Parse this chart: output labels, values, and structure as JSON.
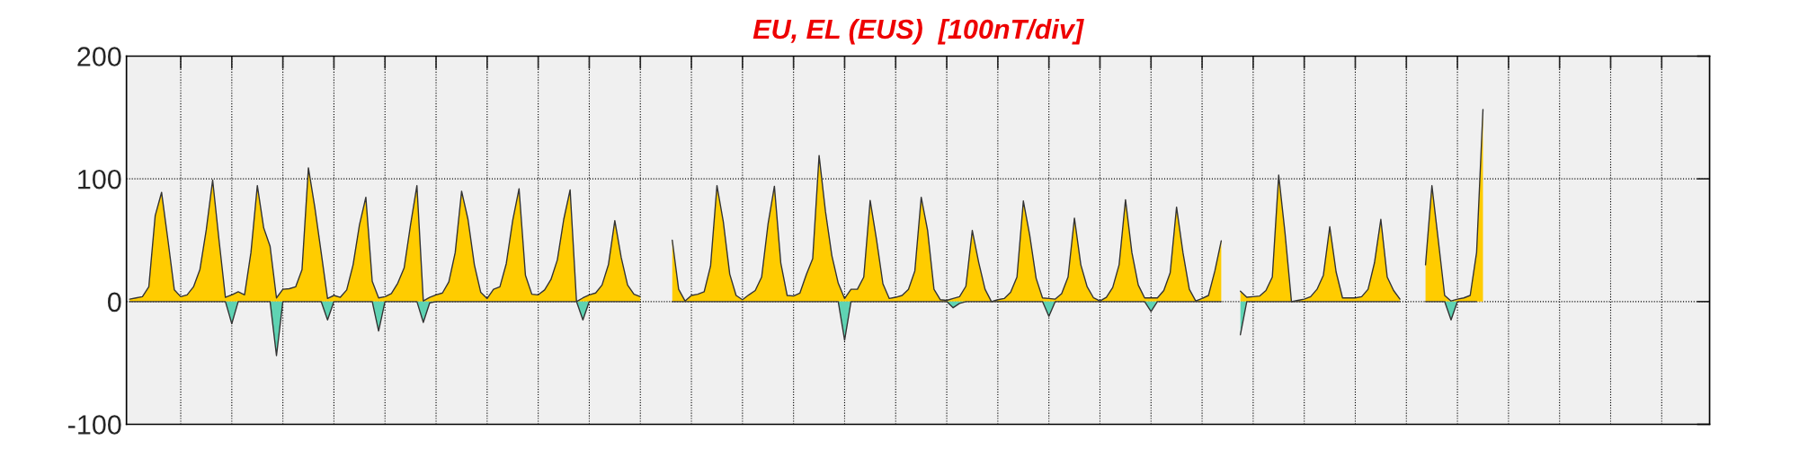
{
  "chart_data": {
    "type": "area",
    "title": "EU, EL (EUS)  [100nT/div]",
    "categories": [
      null,
      null,
      null,
      null,
      null,
      null,
      null,
      null,
      null,
      null,
      null,
      null,
      null,
      null,
      null,
      null,
      null,
      null,
      null,
      null,
      null,
      null,
      null,
      null,
      null,
      null,
      null,
      null,
      null,
      null,
      null,
      null,
      null,
      null,
      null,
      null,
      null,
      null,
      null,
      null,
      null,
      null,
      null,
      null,
      null,
      null,
      null,
      null,
      null,
      null,
      null,
      null,
      null,
      null,
      null,
      null,
      null,
      null,
      null,
      null,
      null,
      null,
      null,
      null,
      null,
      null,
      null,
      null,
      null,
      null,
      null,
      null,
      null,
      null,
      null,
      null,
      null,
      null,
      null,
      null,
      null,
      null,
      null,
      null,
      null,
      null,
      null,
      null,
      null,
      null,
      null,
      null,
      null,
      null,
      null,
      null,
      null,
      null,
      null,
      null,
      null,
      null,
      null,
      null,
      null,
      null,
      null,
      null,
      null,
      null,
      null,
      null,
      null,
      null,
      null,
      null,
      null,
      null,
      null,
      null,
      null,
      null,
      null,
      null,
      null,
      null,
      null,
      null,
      null,
      null,
      null,
      null,
      null,
      null,
      null,
      null,
      null,
      null,
      null,
      null,
      null,
      null,
      null,
      null,
      null,
      null,
      null,
      null,
      null,
      null,
      null,
      null,
      null,
      null,
      null,
      null,
      null,
      null,
      null,
      null,
      null,
      null,
      null,
      null,
      null,
      null,
      null,
      null,
      null,
      null,
      null,
      null,
      null,
      null,
      null,
      null,
      null,
      null,
      null,
      null,
      null,
      null,
      null,
      null,
      null,
      null,
      null,
      null,
      null,
      null,
      null,
      null,
      null,
      null,
      null,
      null,
      null,
      null,
      null,
      null,
      null,
      null,
      null,
      null,
      null,
      null,
      null,
      null,
      null,
      null,
      null,
      null,
      null,
      null,
      null,
      null,
      null,
      null,
      null,
      null,
      null,
      null,
      null,
      null,
      null,
      null,
      null,
      null,
      null,
      null,
      null,
      null,
      null,
      null,
      null,
      null,
      null,
      null,
      null,
      null,
      null,
      null,
      null,
      null,
      null,
      null,
      null,
      null
    ],
    "ylim": [
      -100,
      200
    ],
    "yticks": [
      -100,
      0,
      100,
      200
    ],
    "grid": true,
    "line_style": "dotted",
    "tick_labels": "y",
    "series": [
      {
        "color": "#ffcc00",
        "values": [
          2,
          3,
          4,
          12,
          70,
          89,
          50,
          9.5,
          4,
          5.5,
          12,
          26,
          58.5,
          99,
          50,
          3.5,
          5.5,
          8,
          5.5,
          40,
          94.5,
          60,
          45,
          3,
          10,
          10.5,
          12,
          26,
          109,
          77,
          40,
          2.5,
          5,
          3.5,
          9.5,
          30,
          62.5,
          85,
          16.5,
          3,
          4,
          6.5,
          15,
          27.5,
          62.5,
          94.5,
          0.5,
          3.5,
          5.5,
          7,
          16,
          40,
          90,
          67,
          30,
          7.5,
          2.5,
          10,
          12,
          31,
          66,
          92,
          21.5,
          6,
          5.5,
          9.5,
          18,
          34,
          67,
          91,
          0,
          3,
          5.5,
          7,
          13.5,
          30,
          66,
          36,
          13.5,
          6,
          4,
          null,
          null,
          null,
          null,
          50,
          10,
          0.5,
          5,
          6,
          8,
          29,
          94.5,
          65,
          22.5,
          5,
          1.5,
          5.5,
          9,
          20,
          63,
          94,
          31.5,
          5,
          4.5,
          7,
          22,
          35,
          119,
          73.5,
          37.5,
          15,
          2.5,
          10,
          10,
          20,
          82.5,
          50.5,
          14.5,
          2.5,
          3.5,
          5,
          10,
          25,
          85,
          58,
          10,
          1.5,
          1,
          2.5,
          4,
          12.5,
          58,
          32,
          10,
          0,
          1.5,
          2.5,
          7.5,
          20,
          82,
          54,
          19,
          3,
          2.5,
          2,
          6.5,
          20,
          68,
          30,
          12,
          3,
          0.5,
          3.5,
          11.5,
          30,
          83,
          40,
          13.5,
          3,
          3,
          3,
          9,
          23.5,
          77,
          40,
          10,
          0.5,
          2.5,
          5,
          25,
          49.5,
          null,
          null,
          8.5,
          3.5,
          4,
          4.5,
          9,
          20,
          103,
          55.5,
          0,
          1,
          2,
          4,
          10,
          21.5,
          61,
          24,
          3,
          3,
          3,
          4,
          10,
          31.5,
          67,
          20,
          9,
          2,
          null,
          null,
          null,
          30,
          94.5,
          50,
          5,
          0.5,
          2,
          3,
          5,
          40,
          156.5,
          null,
          null,
          null,
          null,
          null,
          null,
          null,
          null,
          null,
          null,
          null,
          null,
          null,
          null,
          null,
          null,
          null,
          null,
          null,
          null,
          null,
          null,
          null,
          null,
          null,
          null,
          null,
          null,
          null,
          null,
          null,
          null,
          null,
          null,
          null
        ]
      },
      {
        "color": "#5fd3b3",
        "values": [
          0,
          0,
          0,
          0,
          0,
          0,
          0,
          0,
          0,
          0,
          0,
          0,
          0,
          0,
          0,
          0,
          -18,
          0,
          0,
          0,
          0,
          0,
          0,
          -44,
          0,
          0,
          0,
          0,
          0,
          0,
          0,
          -15,
          0,
          0,
          0,
          0,
          0,
          0,
          0,
          -24,
          0,
          0,
          0,
          0,
          0,
          0,
          -17,
          -1,
          0,
          0,
          0,
          0,
          0,
          0,
          0,
          0,
          0,
          0,
          0,
          0,
          0,
          0,
          0,
          0,
          0,
          0,
          0,
          0,
          0,
          0,
          0,
          -15,
          0,
          0,
          0,
          0,
          0,
          0,
          0,
          0,
          0,
          null,
          null,
          null,
          null,
          0,
          0,
          0,
          0,
          0,
          0,
          0,
          0,
          0,
          0,
          0,
          0,
          0,
          0,
          0,
          0,
          0,
          0,
          0,
          0,
          0,
          0,
          0,
          0,
          0,
          0,
          0,
          -31.5,
          0,
          0,
          0,
          0,
          0,
          0,
          0,
          0,
          0,
          0,
          0,
          0,
          0,
          0,
          0,
          0,
          -5,
          -1.5,
          0,
          0,
          0,
          0,
          0,
          0,
          0,
          0,
          0,
          0,
          0,
          0,
          0,
          -12,
          0,
          0,
          0,
          0,
          0,
          0,
          0,
          0,
          0,
          0,
          0,
          0,
          0,
          0,
          0,
          -8,
          0,
          0,
          0,
          0,
          0,
          0,
          0,
          0,
          0,
          0,
          0,
          null,
          null,
          -27,
          0,
          0,
          0,
          0,
          0,
          0,
          0,
          0,
          0,
          0,
          0,
          0,
          0,
          0,
          0,
          0,
          0,
          0,
          0,
          0,
          0,
          0,
          0,
          0,
          0,
          null,
          null,
          null,
          0,
          0,
          0,
          0,
          -15,
          0,
          0,
          0,
          0,
          null,
          null,
          null,
          null,
          null,
          null,
          null,
          null,
          null,
          null,
          null,
          null,
          null,
          null,
          null,
          null,
          null,
          null,
          null,
          null,
          null,
          null,
          null,
          null,
          null,
          null,
          null,
          null,
          null,
          null,
          null,
          null,
          null,
          null,
          null,
          null
        ]
      }
    ]
  }
}
